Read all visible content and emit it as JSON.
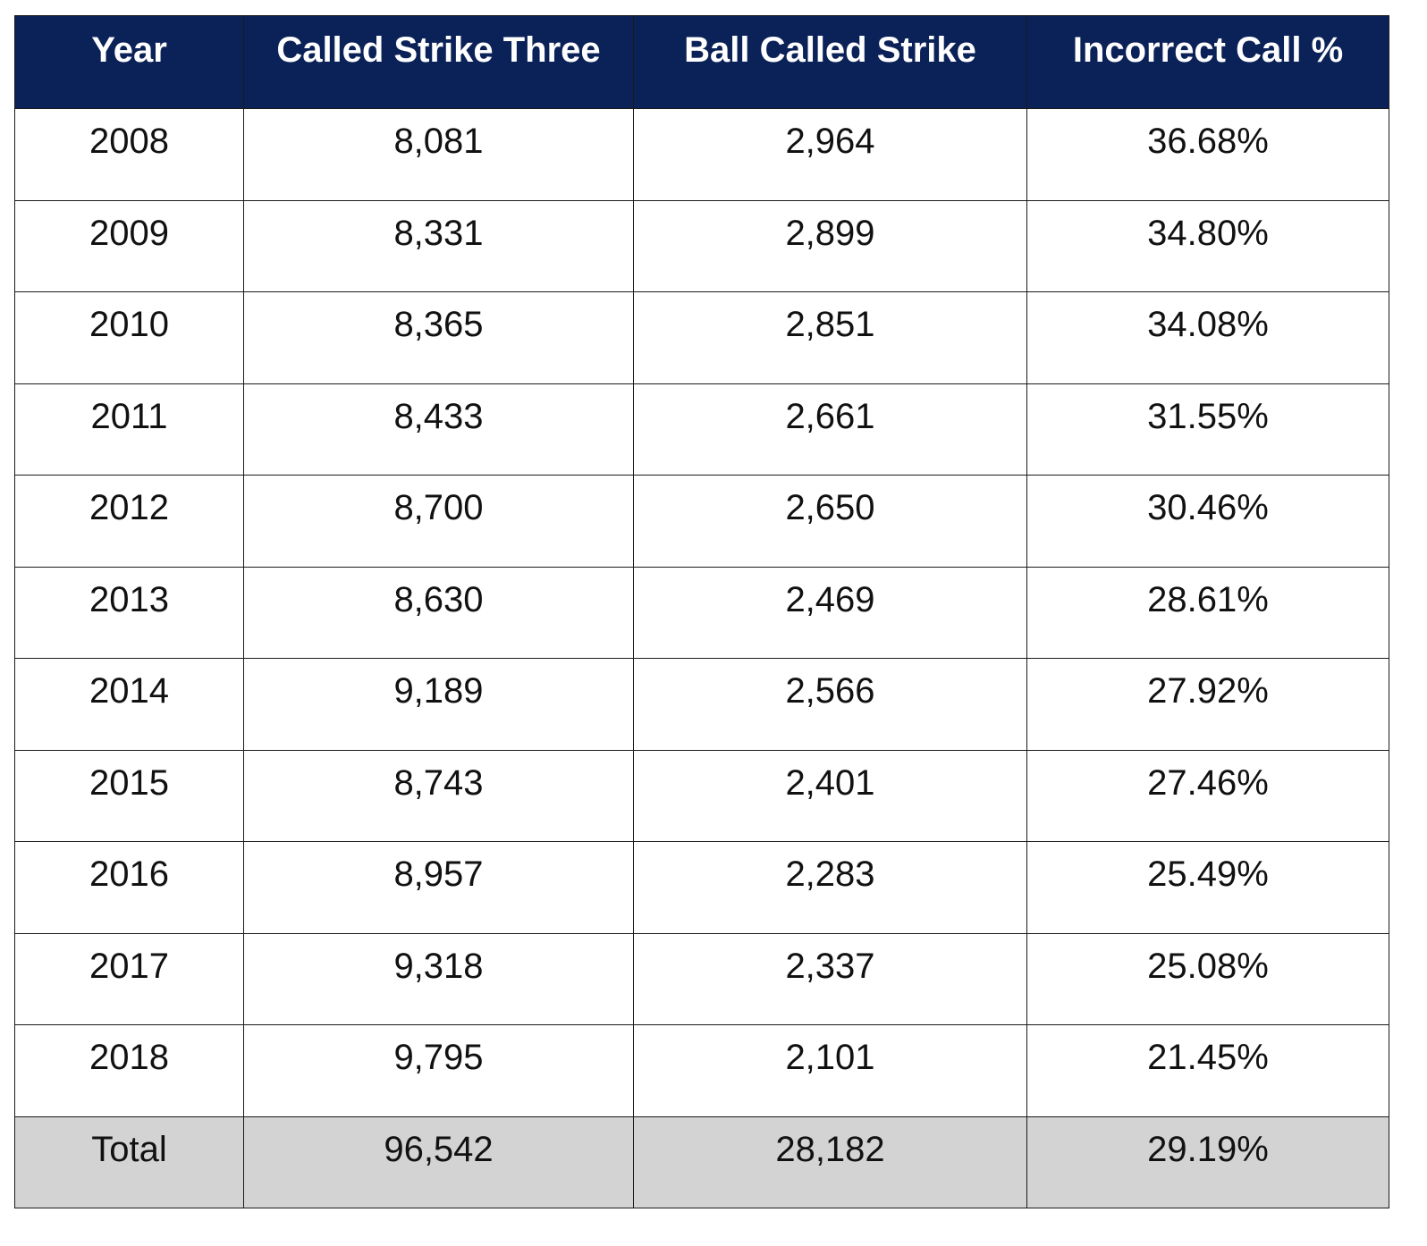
{
  "chart_data": {
    "type": "table",
    "columns": [
      "Year",
      "Called Strike Three",
      "Ball Called Strike",
      "Incorrect Call %"
    ],
    "rows": [
      [
        "2008",
        "8,081",
        "2,964",
        "36.68%"
      ],
      [
        "2009",
        "8,331",
        "2,899",
        "34.80%"
      ],
      [
        "2010",
        "8,365",
        "2,851",
        "34.08%"
      ],
      [
        "2011",
        "8,433",
        "2,661",
        "31.55%"
      ],
      [
        "2012",
        "8,700",
        "2,650",
        "30.46%"
      ],
      [
        "2013",
        "8,630",
        "2,469",
        "28.61%"
      ],
      [
        "2014",
        "9,189",
        "2,566",
        "27.92%"
      ],
      [
        "2015",
        "8,743",
        "2,401",
        "27.46%"
      ],
      [
        "2016",
        "8,957",
        "2,283",
        "25.49%"
      ],
      [
        "2017",
        "9,318",
        "2,337",
        "25.08%"
      ],
      [
        "2018",
        "9,795",
        "2,101",
        "21.45%"
      ]
    ],
    "total": [
      "Total",
      "96,542",
      "28,182",
      "29.19%"
    ]
  },
  "colors": {
    "header_background": "#0b2258",
    "header_text": "#ffffff",
    "total_row_background": "#d3d3d3",
    "border": "#1a1a1a"
  }
}
